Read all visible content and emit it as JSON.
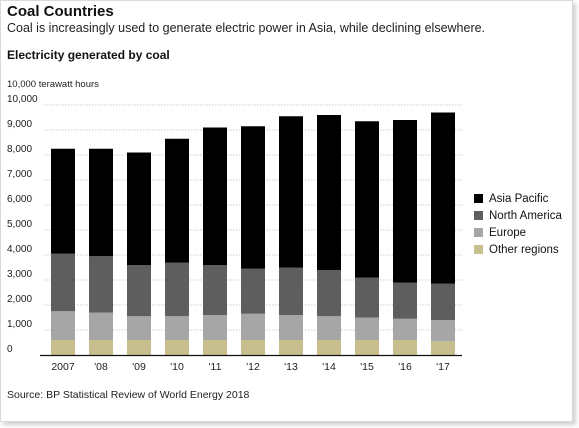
{
  "header": {
    "title": "Coal Countries",
    "subtitle": "Coal is increasingly used to generate electric power in Asia, while declining elsewhere.",
    "section": "Electricity generated by coal"
  },
  "source": "Source: BP Statistical Review of World Energy 2018",
  "chart_data": {
    "type": "bar",
    "stacked": true,
    "title": "Electricity generated by coal",
    "ylabel": "10,000 terawatt hours",
    "ylim": [
      0,
      10000
    ],
    "yticks": [
      0,
      1000,
      2000,
      3000,
      4000,
      5000,
      6000,
      7000,
      8000,
      9000,
      10000
    ],
    "ytick_labels": [
      "0",
      "1,000",
      "2,000",
      "3,000",
      "4,000",
      "5,000",
      "6,000",
      "7,000",
      "8,000",
      "9,000",
      "10,000"
    ],
    "categories": [
      "2007",
      "'08",
      "'09",
      "'10",
      "'11",
      "'12",
      "'13",
      "'14",
      "'15",
      "'16",
      "'17"
    ],
    "grid": true,
    "legend_position": "right",
    "series": [
      {
        "name": "Other regions",
        "color": "#c8bf8f",
        "values": [
          600,
          600,
          600,
          600,
          600,
          600,
          600,
          600,
          600,
          600,
          550
        ]
      },
      {
        "name": "Europe",
        "color": "#a6a6a6",
        "values": [
          1150,
          1100,
          950,
          950,
          1000,
          1050,
          1000,
          950,
          900,
          850,
          850
        ]
      },
      {
        "name": "North America",
        "color": "#5e5e5e",
        "values": [
          2300,
          2250,
          2050,
          2150,
          2000,
          1800,
          1900,
          1850,
          1600,
          1450,
          1450
        ]
      },
      {
        "name": "Asia Pacific",
        "color": "#000000",
        "values": [
          4200,
          4300,
          4500,
          4950,
          5500,
          5700,
          6050,
          6200,
          6250,
          6500,
          6850
        ]
      }
    ],
    "legend_order": [
      "Asia Pacific",
      "North America",
      "Europe",
      "Other regions"
    ]
  }
}
